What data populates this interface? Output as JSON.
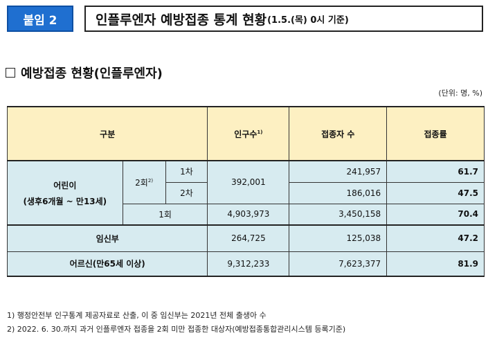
{
  "header": {
    "badge": "붙임 2",
    "title": "인플루엔자 예방접종 통계 현황",
    "title_sub": "(1.5.(목) 0시 기준)"
  },
  "section": {
    "title": "예방접종 현황(인플루엔자)"
  },
  "unit": "(단위: 명, %)",
  "table": {
    "headers": {
      "category": "구분",
      "population": "인구수",
      "population_note": "1)",
      "vaccinated": "접종자 수",
      "rate": "접종률"
    },
    "children": {
      "label": "어린이",
      "sublabel": "(생후6개월 ~ 만13세)",
      "dose2_label": "2회",
      "dose2_note": "2)",
      "dose2_population": "392,001",
      "first": {
        "label": "1차",
        "vaccinated": "241,957",
        "rate": "61.7"
      },
      "second": {
        "label": "2차",
        "vaccinated": "186,016",
        "rate": "47.5"
      },
      "dose1": {
        "label": "1회",
        "population": "4,903,973",
        "vaccinated": "3,450,158",
        "rate": "70.4"
      }
    },
    "pregnant": {
      "label": "임신부",
      "population": "264,725",
      "vaccinated": "125,038",
      "rate": "47.2"
    },
    "elderly": {
      "label": "어르신(만65세 이상)",
      "population": "9,312,233",
      "vaccinated": "7,623,377",
      "rate": "81.9"
    }
  },
  "notes": {
    "note1": "1) 행정안전부 인구통계 제공자료로 산출, 이 중 임신부는 2021년 전체 출생아 수",
    "note2": "2) 2022. 6. 30.까지 과거 인플루엔자 접종을 2회 미만 접종한 대상자(예방접종통합관리시스템 등록기준)"
  }
}
